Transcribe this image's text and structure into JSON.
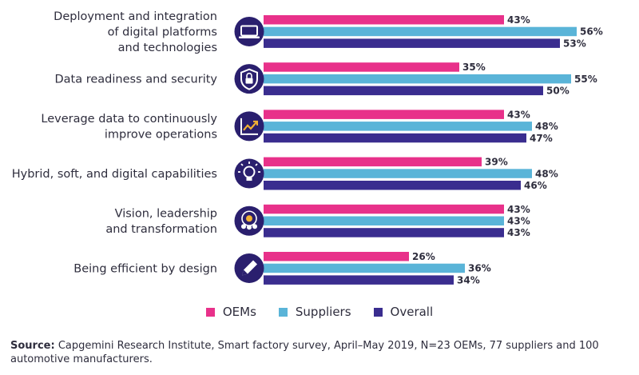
{
  "chart_data": {
    "type": "bar",
    "orientation": "horizontal",
    "categories": [
      [
        "Deployment and integration",
        "of digital platforms",
        "and technologies"
      ],
      [
        "Data readiness and security"
      ],
      [
        "Leverage data to continuously",
        "improve operations"
      ],
      [
        "Hybrid, soft, and digital capabilities"
      ],
      [
        "Vision, leadership",
        "and transformation"
      ],
      [
        "Being efficient by design"
      ]
    ],
    "icons": [
      "laptop-icon",
      "shield-lock-icon",
      "chart-growth-icon",
      "lightbulb-icon",
      "people-target-icon",
      "pencil-icon"
    ],
    "series": [
      {
        "name": "OEMs",
        "color": "#e8318a",
        "values": [
          43,
          35,
          43,
          39,
          43,
          26
        ]
      },
      {
        "name": "Suppliers",
        "color": "#5ab4d8",
        "values": [
          56,
          55,
          48,
          48,
          43,
          36
        ]
      },
      {
        "name": "Overall",
        "color": "#3a2d8f",
        "values": [
          53,
          50,
          47,
          46,
          43,
          34
        ]
      }
    ],
    "value_suffix": "%",
    "xlim": [
      0,
      60
    ],
    "icon_color": "#2a1f6e"
  },
  "legend": {
    "items": [
      {
        "label": "OEMs",
        "color": "#e8318a"
      },
      {
        "label": "Suppliers",
        "color": "#5ab4d8"
      },
      {
        "label": "Overall",
        "color": "#3a2d8f"
      }
    ]
  },
  "footer": {
    "source_label": "Source:",
    "source_text": "Capgemini Research Institute, Smart factory survey, April–May 2019, N=23 OEMs, 77 suppliers and 100 automotive manufacturers."
  }
}
